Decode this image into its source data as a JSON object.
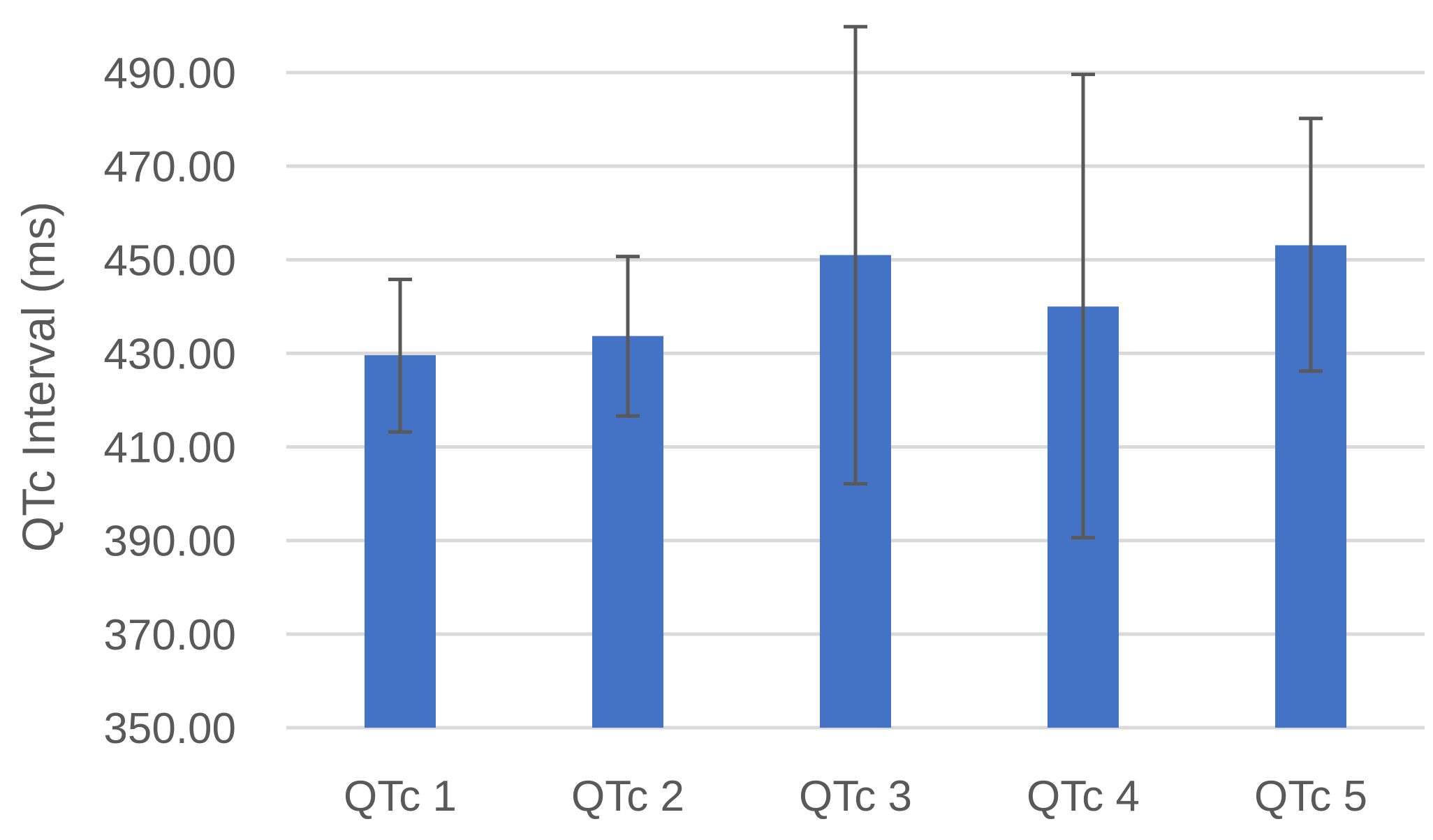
{
  "chart_data": {
    "type": "bar",
    "title": "",
    "xlabel": "",
    "ylabel": "QTc Interval (ms)",
    "categories": [
      "QTc 1",
      "QTc 2",
      "QTc 3",
      "QTc 4",
      "QTc 5"
    ],
    "values": [
      429.6,
      433.7,
      451.0,
      440.0,
      453.1
    ],
    "error_low": [
      413.2,
      416.6,
      402.1,
      390.6,
      426.2
    ],
    "error_high": [
      445.8,
      450.7,
      499.8,
      489.6,
      480.2
    ],
    "ylim": [
      350,
      500
    ],
    "yticks": [
      "350.00",
      "370.00",
      "390.00",
      "410.00",
      "430.00",
      "450.00",
      "470.00",
      "490.00"
    ],
    "ytick_values": [
      350,
      370,
      390,
      410,
      430,
      450,
      470,
      490
    ],
    "grid": true,
    "bar_color": "#4472C4",
    "error_bar_color": "#595959",
    "grid_color": "#D9D9D9",
    "text_color": "#595959"
  }
}
